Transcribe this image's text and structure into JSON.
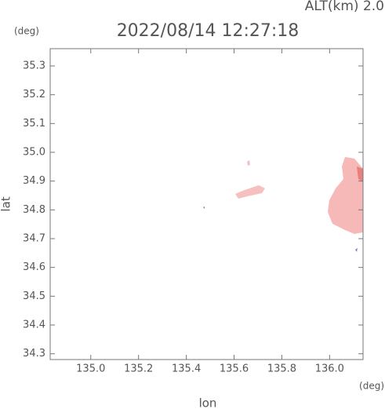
{
  "chart_data": {
    "type": "map",
    "title": "2022/08/14 12:27:18",
    "subtitle": "ALT(km) 2.0",
    "x_label": "lon",
    "x_unit": "(deg)",
    "y_label": "lat",
    "y_unit": "(deg)",
    "xlim": [
      134.83,
      136.14
    ],
    "xticks": [
      {
        "value": 135.0,
        "label": "135.0"
      },
      135.2,
      135.4,
      135.6,
      135.8,
      {
        "value": 136.0,
        "label": "136.0"
      }
    ],
    "ylim": [
      34.28,
      35.36
    ],
    "yticks": [
      34.3,
      34.4,
      34.5,
      34.6,
      34.7,
      34.8,
      34.9,
      {
        "value": 35.0,
        "label": "35.0"
      },
      35.1,
      35.2,
      35.3
    ],
    "color": "#f7b8b8"
  }
}
